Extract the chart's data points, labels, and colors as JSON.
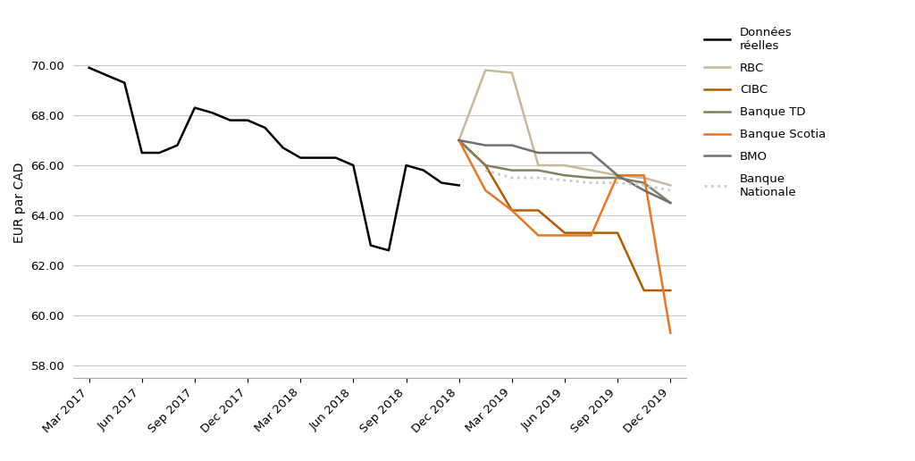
{
  "ylabel": "EUR par CAD",
  "ylim": [
    57.5,
    71.5
  ],
  "yticks": [
    58.0,
    60.0,
    62.0,
    64.0,
    66.0,
    68.0,
    70.0
  ],
  "xtick_labels": [
    "Mar 2017",
    "Jun 2017",
    "Sep 2017",
    "Dec 2017",
    "Mar 2018",
    "Jun 2018",
    "Sep 2018",
    "Dec 2018",
    "Mar 2019",
    "Jun 2019",
    "Sep 2019",
    "Dec 2019"
  ],
  "background_color": "#ffffff",
  "grid_color": "#c8c8c8",
  "donnees_reelles": {
    "label": "Données\nréelles",
    "color": "#000000",
    "linewidth": 1.8,
    "linestyle": "-",
    "x": [
      0,
      0.33,
      0.67,
      1.0,
      1.33,
      1.67,
      2.0,
      2.33,
      2.67,
      3.0,
      3.33,
      3.67,
      4.0,
      4.33,
      4.67,
      5.0,
      5.33,
      5.67,
      6.0,
      6.33,
      6.67,
      7.0
    ],
    "y": [
      69.9,
      69.6,
      69.3,
      66.5,
      66.5,
      66.8,
      68.3,
      68.1,
      67.8,
      67.8,
      67.5,
      66.7,
      66.3,
      66.3,
      66.3,
      66.0,
      62.8,
      62.6,
      66.0,
      65.8,
      65.3,
      65.2
    ]
  },
  "rbc": {
    "label": "RBC",
    "color": "#c8b89a",
    "linewidth": 1.8,
    "linestyle": "-",
    "x": [
      7,
      7.5,
      8,
      8.5,
      9,
      9.5,
      10,
      10.5,
      11
    ],
    "y": [
      67.0,
      69.8,
      69.7,
      66.0,
      66.0,
      65.8,
      65.6,
      65.5,
      65.2
    ]
  },
  "cibc": {
    "label": "CIBC",
    "color": "#b35a00",
    "linewidth": 1.8,
    "linestyle": "-",
    "x": [
      7,
      7.5,
      8,
      8.5,
      9,
      9.5,
      10,
      10.5,
      11
    ],
    "y": [
      67.0,
      66.0,
      64.2,
      64.2,
      63.3,
      63.3,
      63.3,
      61.0,
      61.0
    ]
  },
  "banque_td": {
    "label": "Banque TD",
    "color": "#808060",
    "linewidth": 1.8,
    "linestyle": "-",
    "x": [
      7,
      7.5,
      8,
      8.5,
      9,
      9.5,
      10,
      10.5,
      11
    ],
    "y": [
      67.0,
      66.0,
      65.8,
      65.8,
      65.6,
      65.5,
      65.5,
      65.3,
      64.5
    ]
  },
  "banque_scotia": {
    "label": "Banque Scotia",
    "color": "#e87722",
    "linewidth": 1.8,
    "linestyle": "-",
    "x": [
      7,
      7.5,
      8,
      8.5,
      9,
      9.5,
      10,
      10.5,
      11
    ],
    "y": [
      67.0,
      65.0,
      64.2,
      63.2,
      63.2,
      63.2,
      65.6,
      65.6,
      59.3
    ]
  },
  "bmo": {
    "label": "BMO",
    "color": "#707070",
    "linewidth": 1.8,
    "linestyle": "-",
    "x": [
      7,
      7.5,
      8,
      8.5,
      9,
      9.5,
      10,
      10.5,
      11
    ],
    "y": [
      67.0,
      66.8,
      66.8,
      66.5,
      66.5,
      66.5,
      65.6,
      65.0,
      64.5
    ]
  },
  "banque_nationale": {
    "label": "Banque\nNationale",
    "color": "#c8c8c8",
    "linewidth": 2.0,
    "linestyle": ":",
    "x": [
      7.5,
      8,
      8.5,
      9,
      9.5,
      10,
      10.5,
      11
    ],
    "y": [
      65.8,
      65.5,
      65.5,
      65.4,
      65.3,
      65.3,
      65.2,
      65.0
    ]
  },
  "legend_fontsize": 9.5,
  "tick_fontsize": 9.5,
  "ylabel_fontsize": 10
}
